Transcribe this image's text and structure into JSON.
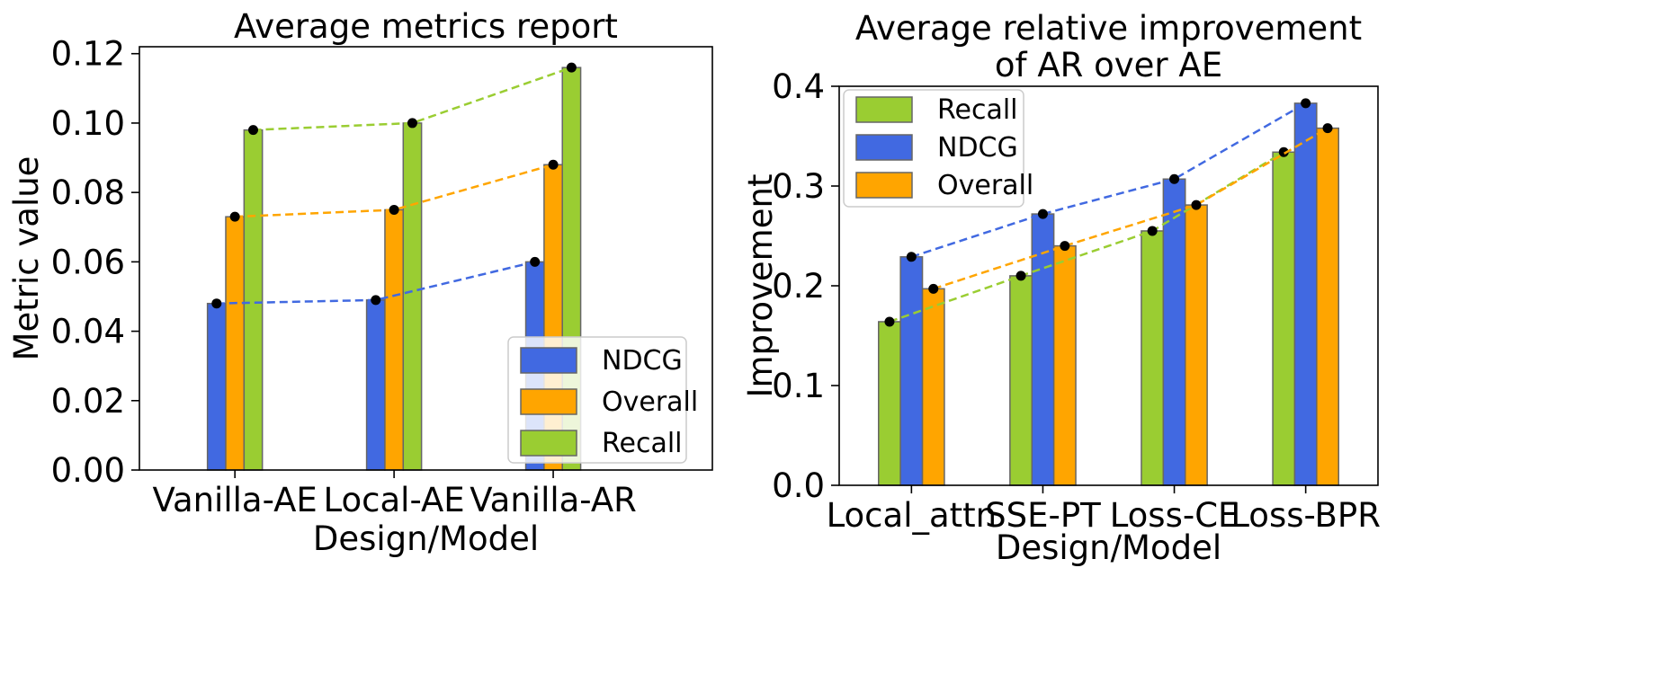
{
  "chart_data": [
    {
      "type": "bar",
      "title": "Average metrics report",
      "xlabel": "Design/Model",
      "ylabel": "Metric value",
      "categories": [
        "Vanilla-AE",
        "Local-AE",
        "Vanilla-AR"
      ],
      "ylim": [
        0,
        0.122
      ],
      "yticks": [
        "0.00",
        "0.02",
        "0.04",
        "0.06",
        "0.08",
        "0.10",
        "0.12"
      ],
      "grid": false,
      "legend_position": "lower-right",
      "series": [
        {
          "name": "NDCG",
          "color": "#4169E1",
          "values": [
            0.048,
            0.049,
            0.06
          ]
        },
        {
          "name": "Overall",
          "color": "#FFA500",
          "values": [
            0.073,
            0.075,
            0.088
          ]
        },
        {
          "name": "Recall",
          "color": "#9ACD32",
          "values": [
            0.098,
            0.1,
            0.116
          ]
        }
      ]
    },
    {
      "type": "bar",
      "title": "Average relative improvement",
      "title_line2": "of AR over AE",
      "xlabel": "Design/Model",
      "ylabel": "Improvement",
      "categories": [
        "Local_attn",
        "SSE-PT",
        "Loss-CE",
        "Loss-BPR"
      ],
      "ylim": [
        0,
        0.4
      ],
      "yticks": [
        "0.0",
        "0.1",
        "0.2",
        "0.3",
        "0.4"
      ],
      "grid": false,
      "legend_position": "upper-left",
      "series": [
        {
          "name": "Recall",
          "color": "#9ACD32",
          "values": [
            0.164,
            0.21,
            0.255,
            0.334
          ]
        },
        {
          "name": "NDCG",
          "color": "#4169E1",
          "values": [
            0.229,
            0.272,
            0.307,
            0.383
          ]
        },
        {
          "name": "Overall",
          "color": "#FFA500",
          "values": [
            0.197,
            0.24,
            0.281,
            0.358
          ]
        }
      ]
    }
  ]
}
